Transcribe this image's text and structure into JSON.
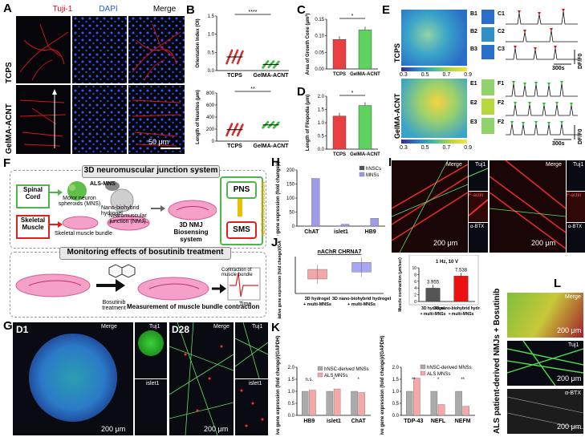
{
  "panels": {
    "A": {
      "label": "A",
      "col_titles": [
        "Tuji-1",
        "DAPI",
        "Merge"
      ],
      "row_titles": [
        "TCPS",
        "GelMA-ACNT"
      ],
      "scale": "50 μm",
      "title_colors": [
        "#e8001c",
        "#1f5fd6",
        "#000000"
      ]
    },
    "B": {
      "label": "B"
    },
    "C": {
      "label": "C"
    },
    "D": {
      "label": "D"
    },
    "E": {
      "label": "E",
      "rows": [
        "TCPS",
        "GelMA-ACNT"
      ],
      "colorbar_ticks": [
        "0.3",
        "0.5",
        "0.7",
        "0.9"
      ],
      "b_labels": [
        "B1",
        "B2",
        "B3"
      ],
      "c_labels": [
        "C1",
        "C2",
        "C3"
      ],
      "e_labels": [
        "E1",
        "E2",
        "E3"
      ],
      "f_labels": [
        "F1",
        "F2",
        "F2"
      ],
      "time": "300s",
      "unit": "DF/F0"
    },
    "F": {
      "label": "F",
      "title1": "3D neuromuscular junction system",
      "title2": "Monitoring effects of bosutinib treatment",
      "spinal": "Spinal Cord",
      "motor": "Motor neuron spheroids (MNS)",
      "als": "ALS-MNS",
      "nano": "Nano-biohybrid hydrogel",
      "nmj": "Neuromuscular junction (NMJ)",
      "nmj3d": "3D NMJ Biosensing system",
      "skeletal": "Skeletal Muscle",
      "bundle": "Skeletal muscle bundle",
      "pns": "PNS",
      "sms": "SMS",
      "neuro": "NEUROTRANSMISSION",
      "bosu": "Bosutinib treatment",
      "measure": "Measurement of muscle bundle contraction",
      "contraction": "Contraction of muscle bundle",
      "time": "Time"
    },
    "G": {
      "label": "G",
      "d1": "D1",
      "d28": "D28",
      "merge": "Merge",
      "tuj1": "Tuj1",
      "islet1": "islet1",
      "scale": "200 μm"
    },
    "H": {
      "label": "H"
    },
    "I": {
      "label": "I",
      "merge": "Merge",
      "tuj1": "Tuj1",
      "factin": "F-actin",
      "abtx": "α-BTX",
      "scale": "200 μm"
    },
    "J": {
      "label": "J"
    },
    "K": {
      "label": "K"
    },
    "L": {
      "label": "L",
      "side": "ALS patient-derived NMJs + Bosutinib",
      "tuj1": "Tuj1",
      "abtx": "α-BTX",
      "merge": "Merge",
      "scale": "200 μm"
    }
  },
  "chart_data": [
    {
      "id": "B-top",
      "type": "scatter",
      "categories": [
        "TCPS",
        "GelMA-ACNT"
      ],
      "ylabel": "Orientation Index (OI)",
      "yticks": [
        "0.0",
        "0.5",
        "1.0",
        "1.5"
      ],
      "ylim": [
        0,
        1.6
      ],
      "means": [
        0.4,
        0.18
      ],
      "significance": "****",
      "colors": [
        "#d62a2a",
        "#35c23a"
      ]
    },
    {
      "id": "B-bottom",
      "type": "scatter",
      "categories": [
        "TCPS",
        "GelMA-ACNT"
      ],
      "ylabel": "Length of Neurites (μm)",
      "yticks": [
        "0",
        "200",
        "400",
        "600",
        "800"
      ],
      "ylim": [
        0,
        800
      ],
      "means": [
        190,
        270
      ],
      "significance": "**",
      "colors": [
        "#d62a2a",
        "#35c23a"
      ]
    },
    {
      "id": "C",
      "type": "bar",
      "categories": [
        "TCPS",
        "GelMA-ACNT"
      ],
      "ylabel": "Area of Growth Cone (μm²)",
      "yticks": [
        "0.00",
        "0.05",
        "0.10",
        "0.15"
      ],
      "ylim": [
        0,
        0.15
      ],
      "values": [
        0.089,
        0.118
      ],
      "significance": "*",
      "colors": [
        "#e84040",
        "#5fd35f"
      ]
    },
    {
      "id": "D",
      "type": "bar",
      "categories": [
        "TCPS",
        "GelMA-ACNT"
      ],
      "ylabel": "Length of Filopodia (μm)",
      "yticks": [
        "0.0",
        "0.5",
        "1.0",
        "1.5",
        "2.0"
      ],
      "ylim": [
        0,
        2.0
      ],
      "values": [
        1.25,
        1.65
      ],
      "significance": "*",
      "colors": [
        "#e84040",
        "#5fd35f"
      ]
    },
    {
      "id": "H",
      "type": "bar",
      "categories": [
        "ChAT",
        "islet1",
        "HB9"
      ],
      "ylabel": "Relative gene expression (fold change)/(GAPDH)",
      "yticks": [
        "0",
        "50",
        "100",
        "150",
        "200"
      ],
      "ylim": [
        0,
        200
      ],
      "series": [
        {
          "name": "hNSCs",
          "values": [
            1,
            1,
            1
          ]
        },
        {
          "name": "MNSs",
          "values": [
            170,
            7,
            28
          ]
        }
      ],
      "colors": [
        "#555555",
        "#9b9be6"
      ]
    },
    {
      "id": "J-left",
      "type": "box",
      "categories": [
        "3D hydrogel + multi-MNSs",
        "3D nano-biohybrid hydrogel + multi-MNSs"
      ],
      "title": "nAChR CHRNA7",
      "ylabel": "Relative gene expression (fold change)/(GAPDH)",
      "values": [
        3.0,
        4.1
      ],
      "colors": [
        "#f3a6a6",
        "#a6a6f3"
      ]
    },
    {
      "id": "J-right",
      "type": "bar",
      "categories": [
        "3D hydrogel + multi-MNSs",
        "3D nano-biohybrid hydrogel + multi-MNSs"
      ],
      "title": "1 Hz, 10 V",
      "ylabel": "Muscle contraction (μm/sec)",
      "yticks": [
        "0",
        "2",
        "4",
        "6",
        "8",
        "10"
      ],
      "ylim": [
        0,
        10
      ],
      "values": [
        3.955,
        7.538
      ],
      "value_labels": [
        "3.955",
        "7.538"
      ],
      "colors": [
        "#555555",
        "#ee1111"
      ]
    },
    {
      "id": "K-left",
      "type": "bar",
      "categories": [
        "HB9",
        "islet1",
        "ChAT"
      ],
      "ylabel": "Relative gene expression (fold change)/(GAPDH)",
      "yticks": [
        "0.0",
        "0.5",
        "1.0",
        "1.5",
        "2.0"
      ],
      "ylim": [
        0,
        2.0
      ],
      "series": [
        {
          "name": "hNSC-derived MNSs",
          "values": [
            1.0,
            1.0,
            1.0
          ]
        },
        {
          "name": "ALS MNSs",
          "values": [
            1.05,
            1.1,
            0.95
          ]
        }
      ],
      "significance": [
        "n.s.",
        "*",
        "*"
      ],
      "colors": [
        "#aaaaaa",
        "#f4a8a8"
      ]
    },
    {
      "id": "K-right",
      "type": "bar",
      "categories": [
        "TDP-43",
        "NEFL",
        "NEFM"
      ],
      "ylabel": "Relative gene expression (fold change)/(GAPDH)",
      "yticks": [
        "0.0",
        "0.5",
        "1.0",
        "1.5",
        "2.0"
      ],
      "ylim": [
        0,
        2.0
      ],
      "series": [
        {
          "name": "hNSC-derived MNSs",
          "values": [
            1.0,
            1.0,
            1.0
          ]
        },
        {
          "name": "ALS MNSs",
          "values": [
            1.55,
            0.45,
            0.38
          ]
        }
      ],
      "significance": [
        "**",
        "*",
        "**"
      ],
      "colors": [
        "#aaaaaa",
        "#f4a8a8"
      ]
    }
  ]
}
